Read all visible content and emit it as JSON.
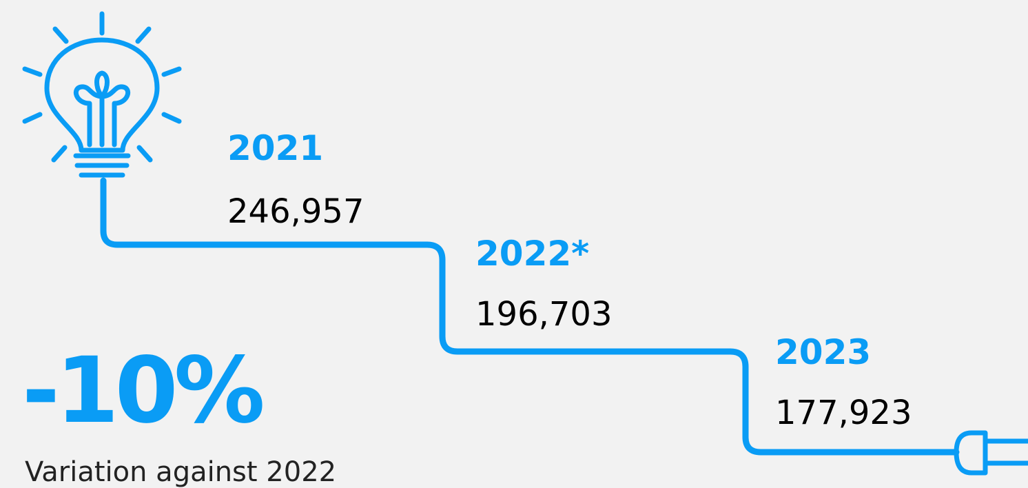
{
  "items": [
    {
      "year": "2021",
      "value": "246,957"
    },
    {
      "year": "2022*",
      "value": "196,703"
    },
    {
      "year": "2023",
      "value": "177,923"
    }
  ],
  "highlight": {
    "value": "-10%",
    "caption": "Variation against 2022"
  }
}
